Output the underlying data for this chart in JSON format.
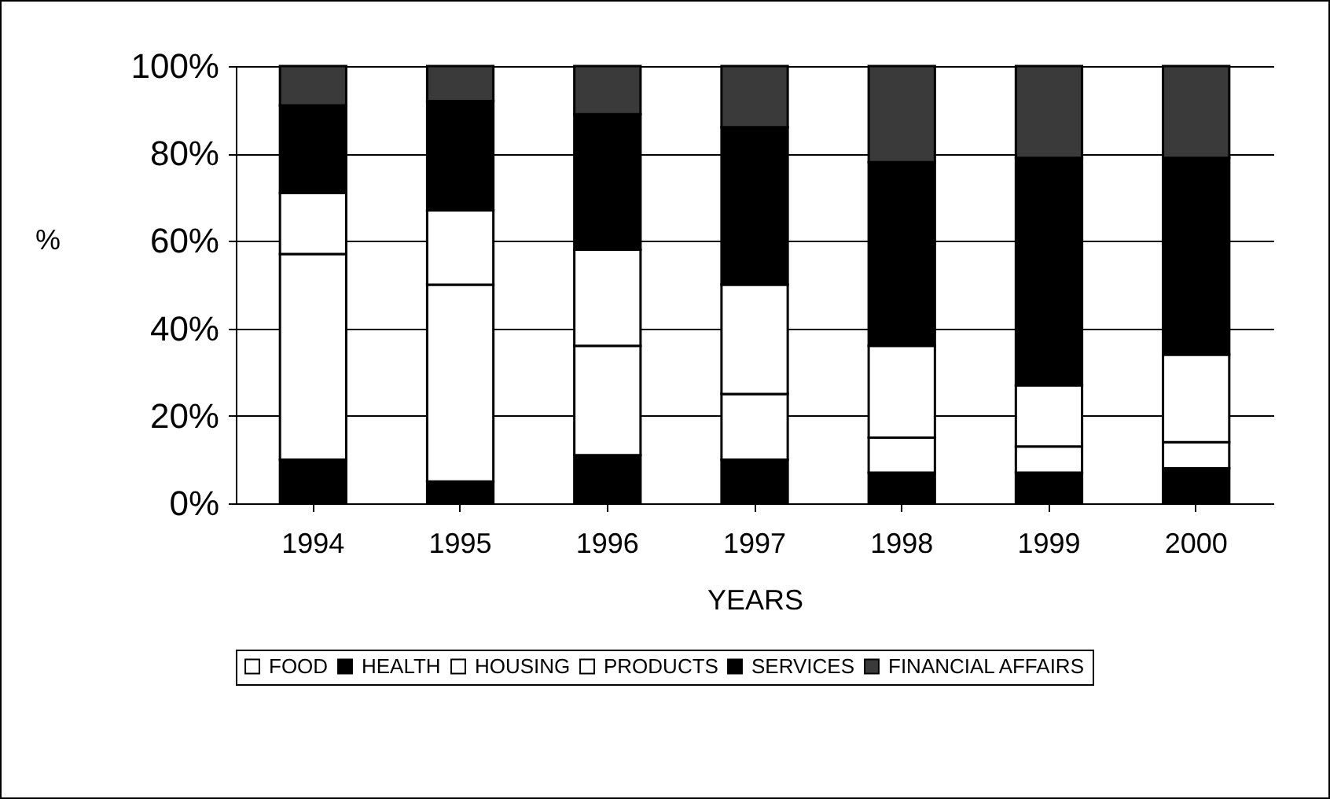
{
  "chart_data": {
    "type": "bar",
    "stacked": true,
    "xlabel": "YEARS",
    "ylabel": "%",
    "categories": [
      "1994",
      "1995",
      "1996",
      "1997",
      "1998",
      "1999",
      "2000"
    ],
    "series": [
      {
        "name": "FOOD",
        "color": "#ffffff",
        "values": [
          0,
          0,
          0,
          0,
          0,
          0,
          0
        ]
      },
      {
        "name": "HEALTH",
        "color": "#000000",
        "values": [
          10,
          5,
          11,
          10,
          7,
          7,
          8
        ]
      },
      {
        "name": "HOUSING",
        "color": "#ffffff",
        "values": [
          47,
          45,
          25,
          15,
          8,
          6,
          6
        ]
      },
      {
        "name": "PRODUCTS",
        "color": "#ffffff",
        "values": [
          14,
          17,
          22,
          25,
          21,
          14,
          20
        ]
      },
      {
        "name": "SERVICES",
        "color": "#000000",
        "values": [
          20,
          25,
          31,
          36,
          42,
          52,
          45
        ]
      },
      {
        "name": "FINANCIAL AFFAIRS",
        "color": "#3a3a3a",
        "values": [
          9,
          8,
          11,
          14,
          22,
          21,
          21
        ]
      }
    ],
    "ylim": [
      0,
      100
    ],
    "yticks": [
      {
        "value": 0,
        "label": "0%"
      },
      {
        "value": 20,
        "label": "20%"
      },
      {
        "value": 40,
        "label": "40%"
      },
      {
        "value": 60,
        "label": "60%"
      },
      {
        "value": 80,
        "label": "80%"
      },
      {
        "value": 100,
        "label": "100%"
      }
    ],
    "grid": "y",
    "legend": "bottom"
  }
}
